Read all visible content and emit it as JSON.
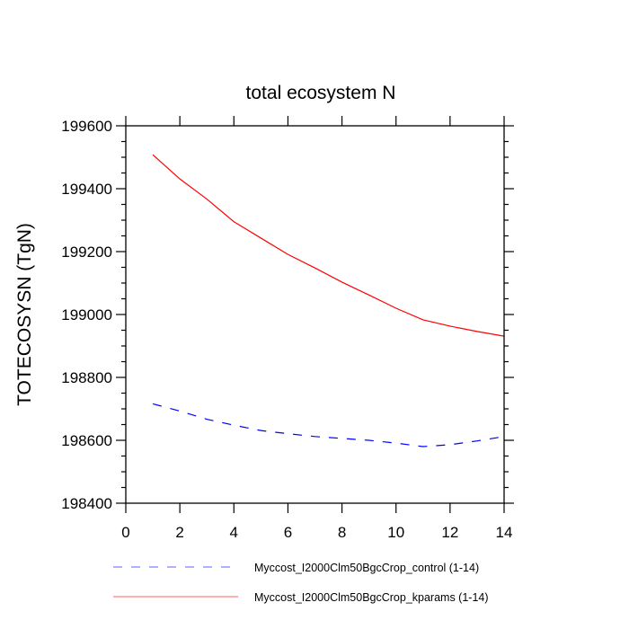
{
  "chart_data": {
    "type": "line",
    "title": "total ecosystem N",
    "xlabel": "",
    "ylabel": "TOTECOSYSN  (TgN)",
    "xlim": [
      0,
      14
    ],
    "ylim": [
      198400,
      199600
    ],
    "x_ticks": [
      0,
      2,
      4,
      6,
      8,
      10,
      12,
      14
    ],
    "y_ticks": [
      198400,
      198600,
      198800,
      199000,
      199200,
      199400,
      199600
    ],
    "grid": false,
    "legend_position": "bottom",
    "x": [
      1,
      2,
      3,
      4,
      5,
      6,
      7,
      8,
      9,
      10,
      11,
      12,
      13,
      14
    ],
    "series": [
      {
        "name": "Myccost_I2000Clm50BgcCrop_control (1-14)",
        "color": "#0000ff",
        "style": "dashed",
        "values": [
          198716,
          198693,
          198667,
          198648,
          198631,
          198621,
          198612,
          198606,
          198600,
          198591,
          198580,
          198586,
          198598,
          198612
        ]
      },
      {
        "name": "Myccost_I2000Clm50BgcCrop_kparams (1-14)",
        "color": "#ff0000",
        "style": "solid",
        "values": [
          199508,
          199431,
          199367,
          199295,
          199243,
          199191,
          199148,
          199103,
          199062,
          199020,
          198983,
          198963,
          198946,
          198931
        ]
      }
    ]
  }
}
